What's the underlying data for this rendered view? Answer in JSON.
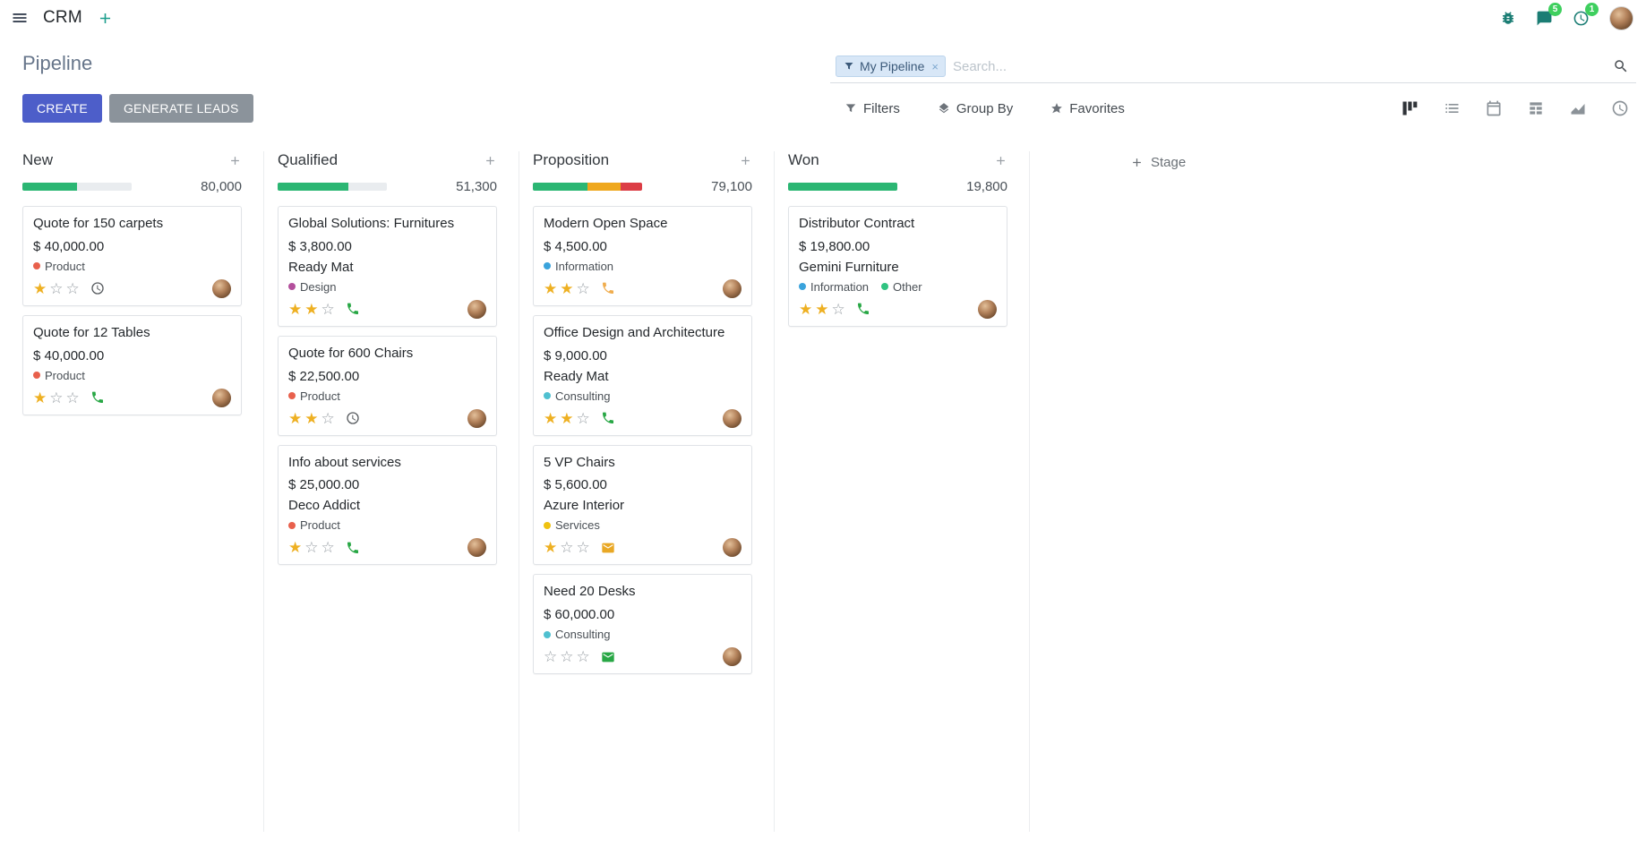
{
  "topbar": {
    "app_name": "CRM",
    "messages_badge": "5",
    "activities_badge": "1"
  },
  "control_panel": {
    "title": "Pipeline",
    "create_label": "CREATE",
    "generate_leads_label": "GENERATE LEADS",
    "filters_label": "Filters",
    "group_by_label": "Group By",
    "favorites_label": "Favorites",
    "search": {
      "facet_label": "My Pipeline",
      "facet_remove": "×",
      "placeholder": "Search..."
    }
  },
  "view_switcher": {
    "active": "kanban",
    "views": [
      "kanban",
      "list",
      "calendar",
      "pivot",
      "graph",
      "activity"
    ]
  },
  "colors": {
    "primary_button": "#4d5ec9",
    "secondary_button": "#8b939b",
    "progress_success": "#2bb673",
    "progress_warning": "#efa81e",
    "progress_danger": "#dc3d45",
    "badge_green": "#3ecf5e",
    "star_gold": "#eeb022",
    "facet_bg": "#d8e7f7"
  },
  "icons": {
    "star_filled": "★",
    "star_empty": "☆"
  },
  "board": {
    "add_stage_label": "Stage",
    "columns": [
      {
        "title": "New",
        "total": "80,000",
        "progress": [
          {
            "status": "success",
            "color": "#2bb673",
            "pct": 50
          }
        ],
        "cards": [
          {
            "title": "Quote for 150 carpets",
            "amount": "$ 40,000.00",
            "company": "",
            "tags": [
              {
                "label": "Product",
                "color": "#e8604c"
              }
            ],
            "stars_filled": 1,
            "stars_total": 3,
            "activity": {
              "icon": "clock-icon",
              "color": "#565a5e"
            }
          },
          {
            "title": "Quote for 12 Tables",
            "amount": "$ 40,000.00",
            "company": "",
            "tags": [
              {
                "label": "Product",
                "color": "#e8604c"
              }
            ],
            "stars_filled": 1,
            "stars_total": 3,
            "activity": {
              "icon": "phone-icon",
              "color": "#28a745"
            }
          }
        ]
      },
      {
        "title": "Qualified",
        "total": "51,300",
        "progress": [
          {
            "status": "success",
            "color": "#2bb673",
            "pct": 65
          }
        ],
        "cards": [
          {
            "title": "Global Solutions: Furnitures",
            "amount": "$ 3,800.00",
            "company": "Ready Mat",
            "tags": [
              {
                "label": "Design",
                "color": "#b34f9c"
              }
            ],
            "stars_filled": 2,
            "stars_total": 3,
            "activity": {
              "icon": "phone-icon",
              "color": "#28a745"
            }
          },
          {
            "title": "Quote for 600 Chairs",
            "amount": "$ 22,500.00",
            "company": "",
            "tags": [
              {
                "label": "Product",
                "color": "#e8604c"
              }
            ],
            "stars_filled": 2,
            "stars_total": 3,
            "activity": {
              "icon": "clock-icon",
              "color": "#565a5e"
            }
          },
          {
            "title": "Info about services",
            "amount": "$ 25,000.00",
            "company": "Deco Addict",
            "tags": [
              {
                "label": "Product",
                "color": "#e8604c"
              }
            ],
            "stars_filled": 1,
            "stars_total": 3,
            "activity": {
              "icon": "phone-icon",
              "color": "#28a745"
            }
          }
        ]
      },
      {
        "title": "Proposition",
        "total": "79,100",
        "progress": [
          {
            "status": "success",
            "color": "#2bb673",
            "pct": 50
          },
          {
            "status": "warning",
            "color": "#efa81e",
            "pct": 30
          },
          {
            "status": "danger",
            "color": "#dc3d45",
            "pct": 20
          }
        ],
        "cards": [
          {
            "title": "Modern Open Space",
            "amount": "$ 4,500.00",
            "company": "",
            "tags": [
              {
                "label": "Information",
                "color": "#3aa3dc"
              }
            ],
            "stars_filled": 2,
            "stars_total": 3,
            "activity": {
              "icon": "phone-icon",
              "color": "#f0ad4e"
            }
          },
          {
            "title": "Office Design and Architecture",
            "amount": "$ 9,000.00",
            "company": "Ready Mat",
            "tags": [
              {
                "label": "Consulting",
                "color": "#4fc0d0"
              }
            ],
            "stars_filled": 2,
            "stars_total": 3,
            "activity": {
              "icon": "phone-icon",
              "color": "#28a745"
            }
          },
          {
            "title": "5 VP Chairs",
            "amount": "$ 5,600.00",
            "company": "Azure Interior",
            "tags": [
              {
                "label": "Services",
                "color": "#efc211"
              }
            ],
            "stars_filled": 1,
            "stars_total": 3,
            "activity": {
              "icon": "envelope-icon",
              "color": "#e9a825"
            }
          },
          {
            "title": "Need 20 Desks",
            "amount": "$ 60,000.00",
            "company": "",
            "tags": [
              {
                "label": "Consulting",
                "color": "#4fc0d0"
              }
            ],
            "stars_filled": 0,
            "stars_total": 3,
            "activity": {
              "icon": "envelope-icon",
              "color": "#28a745"
            }
          }
        ]
      },
      {
        "title": "Won",
        "total": "19,800",
        "progress": [
          {
            "status": "success",
            "color": "#2bb673",
            "pct": 100
          }
        ],
        "cards": [
          {
            "title": "Distributor Contract",
            "amount": "$ 19,800.00",
            "company": "Gemini Furniture",
            "tags": [
              {
                "label": "Information",
                "color": "#3aa3dc"
              },
              {
                "label": "Other",
                "color": "#30c381"
              }
            ],
            "stars_filled": 2,
            "stars_total": 3,
            "activity": {
              "icon": "phone-icon",
              "color": "#28a745"
            }
          }
        ]
      }
    ]
  }
}
